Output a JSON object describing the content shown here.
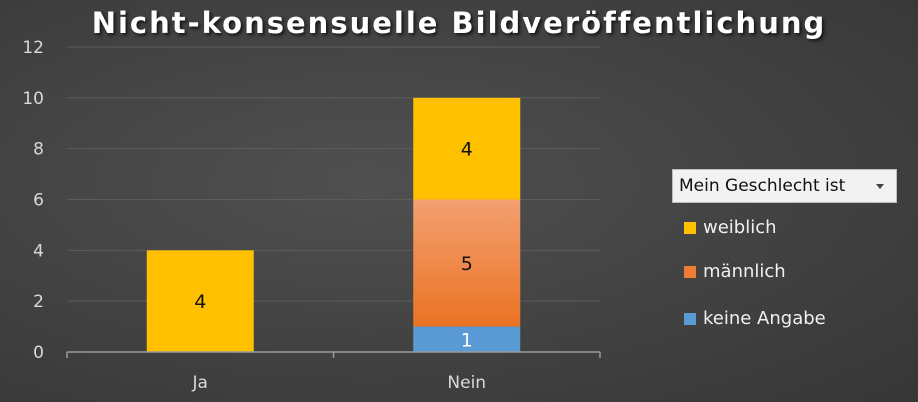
{
  "chart_data": {
    "type": "bar",
    "stacked": true,
    "title": "Nicht-konsensuelle Bildveröffentlichung",
    "xlabel": "",
    "ylabel": "",
    "categories": [
      "Ja",
      "Nein"
    ],
    "ylim": [
      0,
      12
    ],
    "yticks": [
      0,
      2,
      4,
      6,
      8,
      10,
      12
    ],
    "grid": true,
    "legend_position": "right",
    "legend_filter_label": "Mein Geschlecht ist",
    "series": [
      {
        "name": "keine Angabe",
        "values": [
          0,
          1
        ],
        "color": "#5b9bd5"
      },
      {
        "name": "männlich",
        "values": [
          0,
          5
        ],
        "color": "#ed7d31"
      },
      {
        "name": "weiblich",
        "values": [
          4,
          4
        ],
        "color": "#ffc000"
      }
    ],
    "legend_order": [
      "weiblich",
      "männlich",
      "keine Angabe"
    ]
  },
  "colors": {
    "background": "#444444",
    "text": "#d9d9d9",
    "gridline": "#5c5c5c",
    "axis": "#9a9a9a"
  }
}
